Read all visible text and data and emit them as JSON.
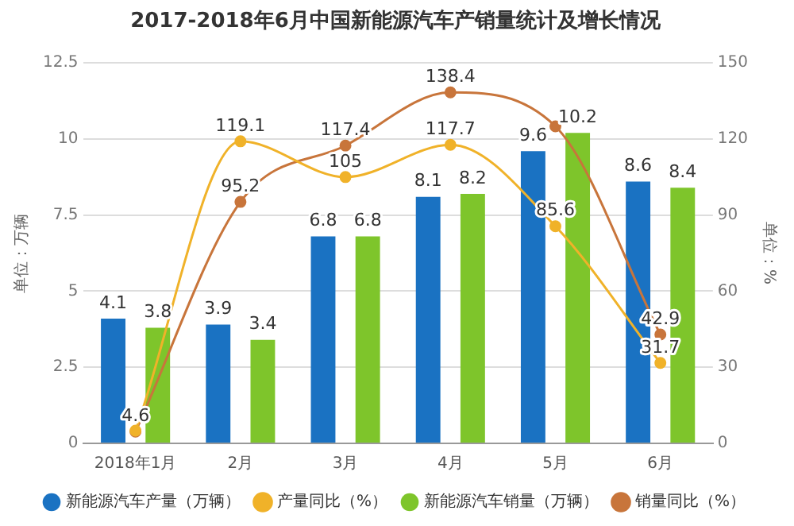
{
  "chart_data": {
    "type": "bar",
    "title": "2017-2018年6月中国新能源汽车产销量统计及增长情况",
    "ylabel": "单位：万辆",
    "y2label": "单位：%",
    "categories": [
      "2018年1月",
      "2月",
      "3月",
      "4月",
      "5月",
      "6月"
    ],
    "series": [
      {
        "name": "新能源汽车产量（万辆）",
        "color": "#1a72c2",
        "values": [
          4.1,
          3.9,
          6.8,
          8.1,
          9.6,
          8.6
        ],
        "value_labels": [
          "4.1",
          "3.9",
          "6.8",
          "8.1",
          "9.6",
          "8.6"
        ]
      },
      {
        "name": "产量同比（%）",
        "type": "line",
        "axis": "y2",
        "color": "#f0b229",
        "values": [
          5,
          119.1,
          105,
          117.7,
          85.6,
          31.7
        ],
        "value_labels": [
          null,
          "119.1",
          "105",
          "117.7",
          "85.6",
          "31.7"
        ]
      },
      {
        "name": "新能源汽车销量（万辆）",
        "color": "#7ec52b",
        "values": [
          3.8,
          3.4,
          6.8,
          8.2,
          10.2,
          8.4
        ],
        "value_labels": [
          "3.8",
          "3.4",
          "6.8",
          "8.2",
          "10.2",
          "8.4"
        ]
      },
      {
        "name": "销量同比（%）",
        "type": "line",
        "axis": "y2",
        "color": "#c8753b",
        "values": [
          4.6,
          95.2,
          117.4,
          138.4,
          125,
          42.9
        ],
        "value_labels": [
          "4.6",
          "95.2",
          "117.4",
          "138.4",
          null,
          "42.9"
        ]
      }
    ],
    "ylim": [
      0,
      12.5
    ],
    "yticks": [
      0,
      2.5,
      5,
      7.5,
      10,
      12.5
    ],
    "y2lim": [
      0,
      150
    ],
    "y2ticks": [
      0,
      30,
      60,
      90,
      120,
      150
    ],
    "grid": "y",
    "legend": "bottom",
    "marker": "circle",
    "line_style": "solid"
  }
}
